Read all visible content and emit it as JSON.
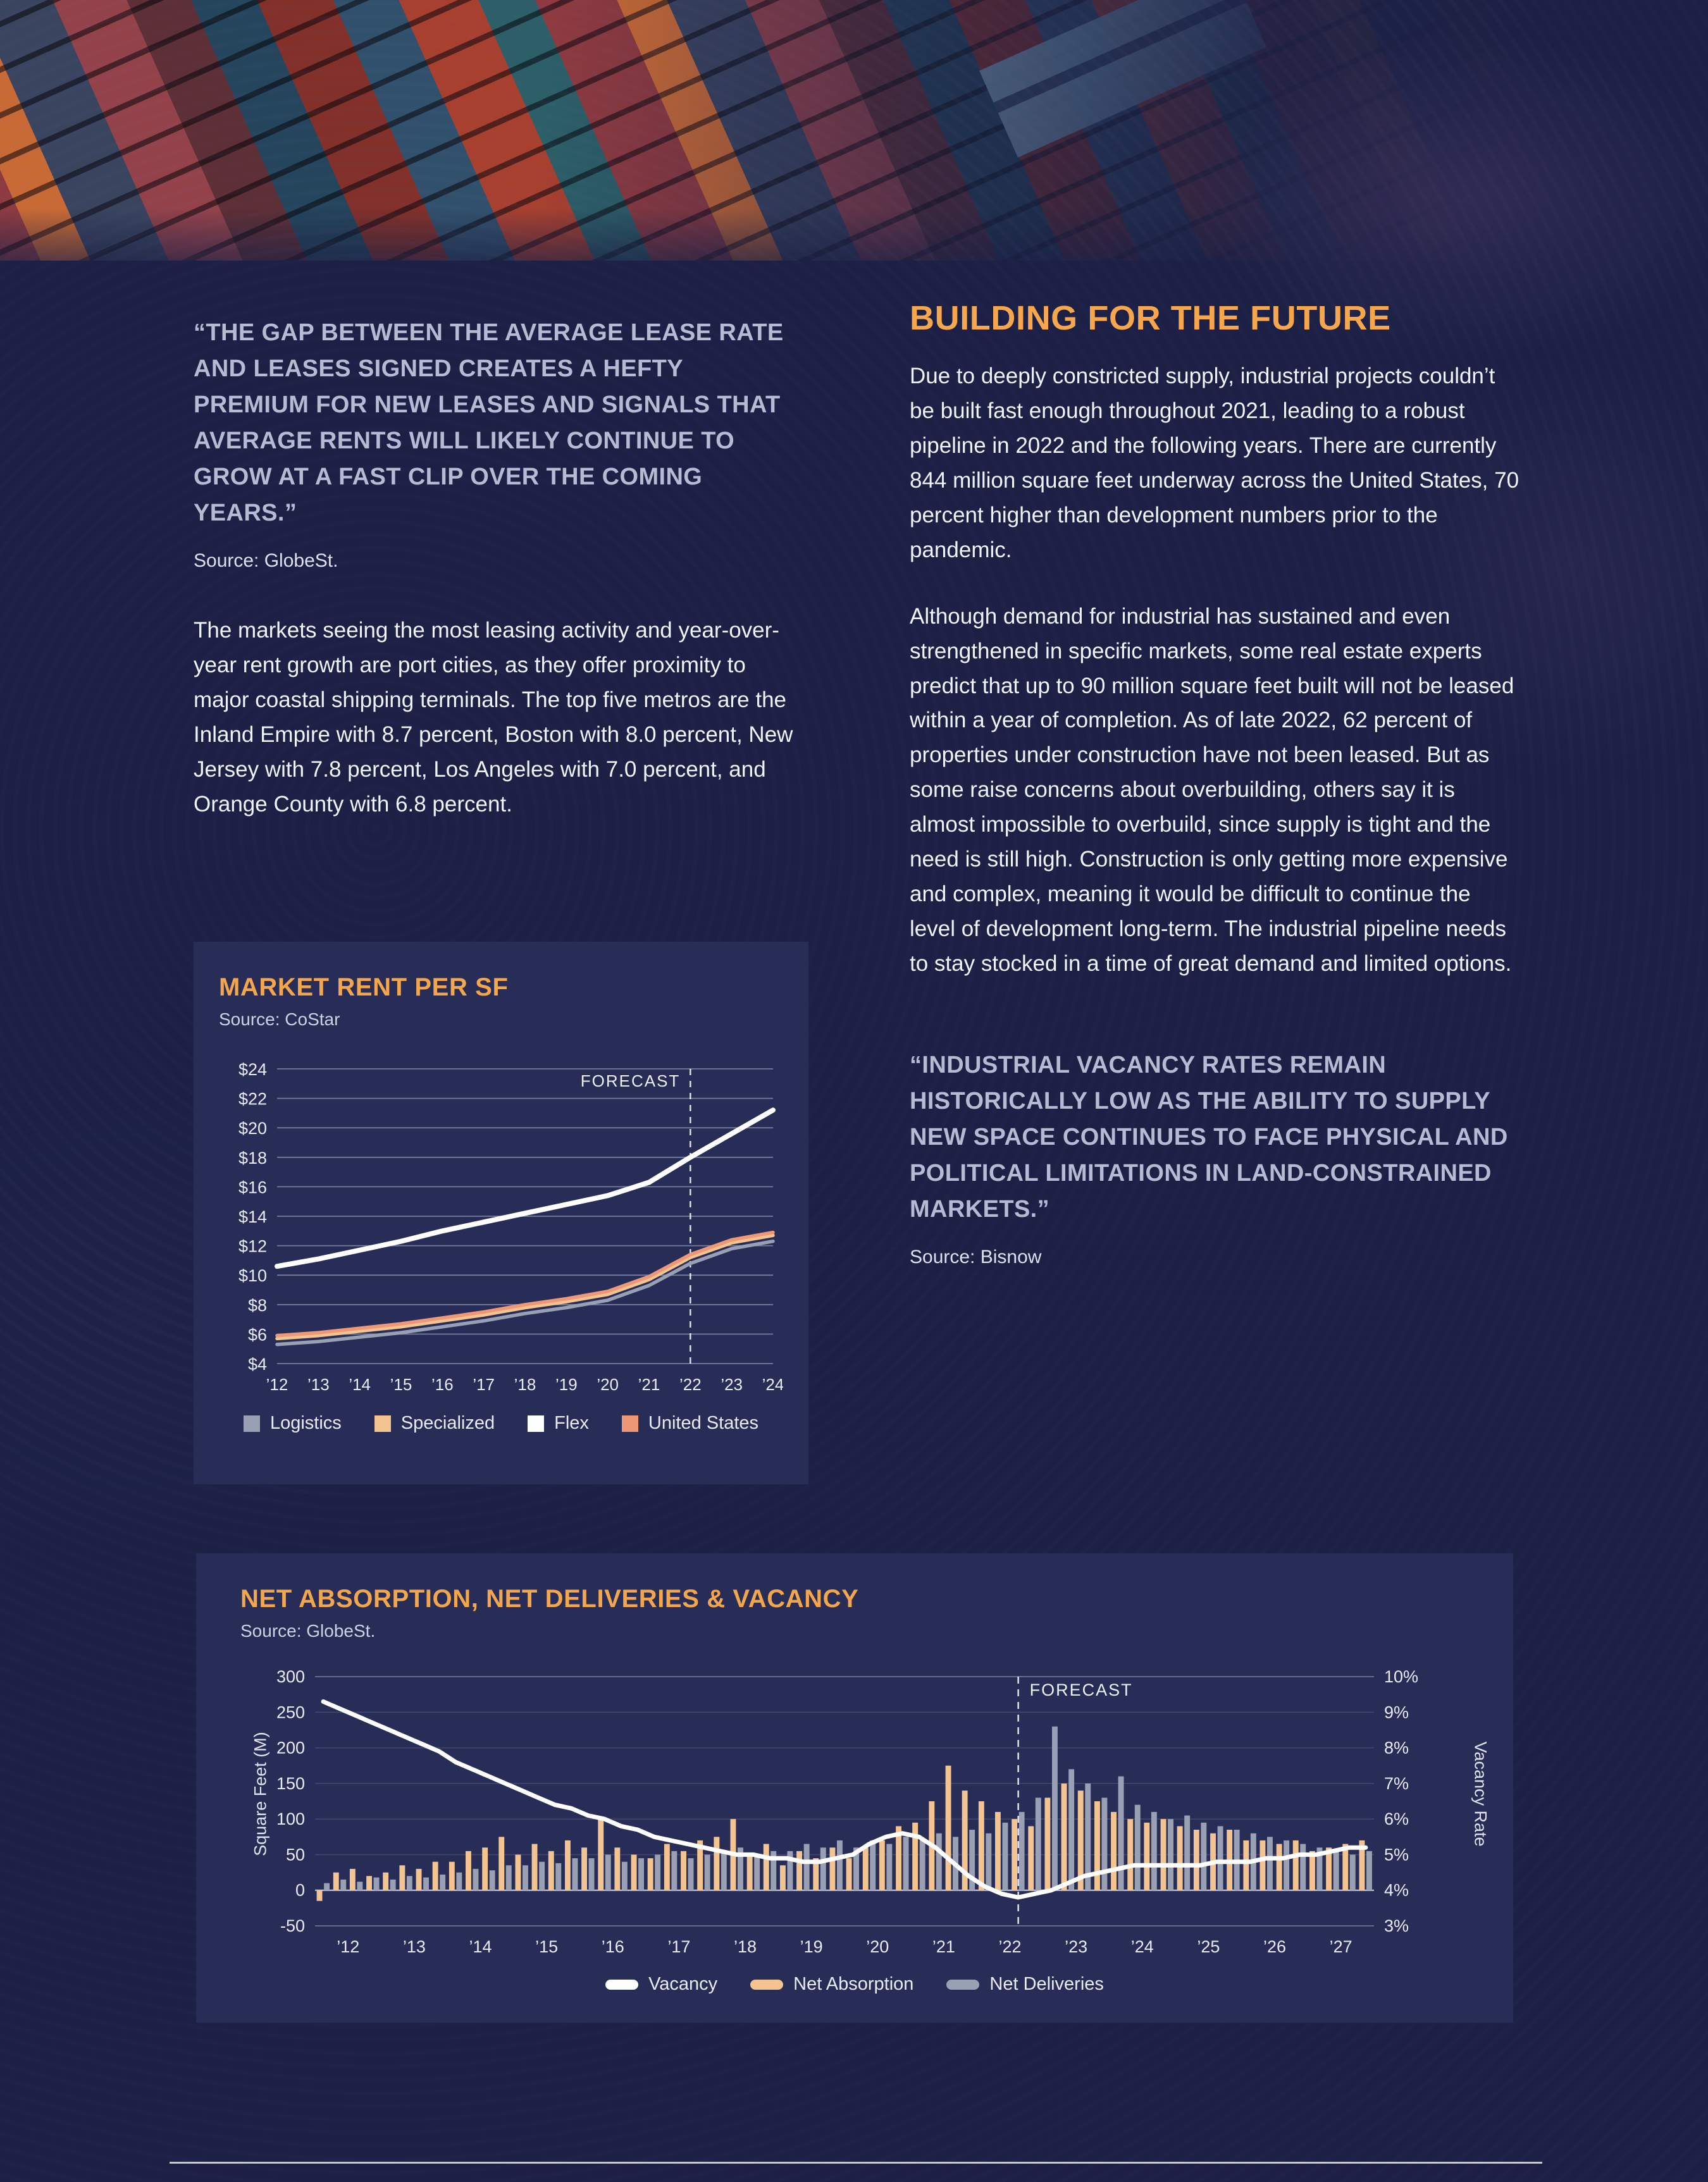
{
  "left_column": {
    "quote": "“THE GAP BETWEEN THE AVERAGE LEASE RATE AND LEASES SIGNED CREATES A HEFTY PREMIUM FOR NEW LEASES AND SIGNALS THAT AVERAGE RENTS WILL LIKELY CONTINUE TO GROW AT A FAST CLIP OVER THE COMING YEARS.”",
    "quote_source": "Source: GlobeSt.",
    "paragraph": "The markets seeing the most leasing activity and year-over-year rent growth are port cities, as they offer proximity to major coastal shipping terminals. The top five metros are the Inland Empire with 8.7 percent, Boston with 8.0 percent, New Jersey with 7.8 percent, Los Angeles with 7.0 percent, and Orange County with 6.8 percent."
  },
  "right_column": {
    "heading": "BUILDING FOR THE FUTURE",
    "paragraph_1": "Due to deeply constricted supply, industrial projects couldn’t be built fast enough throughout 2021, leading to a robust pipeline in 2022 and the following years. There are currently 844 million square feet underway across the United States, 70 percent higher than development numbers prior to the pandemic.",
    "paragraph_2": "Although demand for industrial has sustained and even strengthened in specific markets, some real estate experts predict that up to 90 million square feet built will not be leased within a year of completion. As of late 2022, 62 percent of properties under construction have not been leased. But as some raise concerns about overbuilding, others say it is almost impossible to overbuild, since supply is tight and the need is still high. Construction is only getting more expensive and complex, meaning it would be difficult to continue the level of development long-term. The industrial pipeline needs to stay stocked in a time of great demand and limited options.",
    "quote": "“INDUSTRIAL VACANCY RATES REMAIN HISTORICALLY LOW AS THE ABILITY TO SUPPLY NEW SPACE CONTINUES TO FACE PHYSICAL AND POLITICAL LIMITATIONS IN LAND-CONSTRAINED MARKETS.”",
    "quote_source": "Source: Bisnow"
  },
  "colors": {
    "background": "#1b2044",
    "card": "#272d56",
    "accent_orange": "#f3a64c",
    "quote_gray": "#b4bbd2",
    "body_text": "#f1f3fa",
    "tan": "#f3c390",
    "gray": "#9aa0b4",
    "salmon": "#ef9878",
    "white": "#ffffff"
  },
  "chart_data": [
    {
      "type": "line",
      "title": "MARKET RENT PER SF",
      "source": "Source: CoStar",
      "x": [
        "’12",
        "’13",
        "’14",
        "’15",
        "’16",
        "’17",
        "’18",
        "’19",
        "’20",
        "’21",
        "’22",
        "’23",
        "’24"
      ],
      "ylim": [
        4,
        24
      ],
      "ytick_step": 2,
      "ytick_prefix": "$",
      "grid": true,
      "forecast_label": "FORECAST",
      "forecast_x": "’22",
      "legend_position": "bottom",
      "series": [
        {
          "name": "Logistics",
          "color": "#9aa0b4",
          "width": 5.5,
          "values": [
            5.3,
            5.5,
            5.8,
            6.1,
            6.5,
            6.9,
            7.4,
            7.8,
            8.3,
            9.3,
            10.8,
            11.8,
            12.3
          ]
        },
        {
          "name": "Specialized",
          "color": "#f3c390",
          "width": 5.5,
          "values": [
            5.7,
            5.9,
            6.2,
            6.5,
            6.9,
            7.3,
            7.8,
            8.2,
            8.7,
            9.7,
            11.2,
            12.2,
            12.7
          ]
        },
        {
          "name": "Flex",
          "color": "#ffffff",
          "width": 8,
          "values": [
            10.6,
            11.1,
            11.7,
            12.3,
            13.0,
            13.6,
            14.2,
            14.8,
            15.4,
            16.3,
            18.0,
            19.6,
            21.2
          ]
        },
        {
          "name": "United States",
          "color": "#ef9878",
          "width": 5.5,
          "values": [
            5.9,
            6.1,
            6.4,
            6.7,
            7.1,
            7.5,
            8.0,
            8.4,
            8.9,
            9.9,
            11.4,
            12.4,
            12.9
          ]
        }
      ]
    },
    {
      "type": "combo",
      "title": "NET ABSORPTION, NET DELIVERIES & VACANCY",
      "source": "Source: GlobeSt.",
      "ylabel_left": "Square Feet (M)",
      "ylabel_right": "Vacancy Rate",
      "ylim_left": [
        -50,
        300
      ],
      "yticks_left": [
        -50,
        0,
        50,
        100,
        150,
        200,
        250,
        300
      ],
      "ylim_right": [
        3,
        10
      ],
      "yticks_right": [
        3,
        4,
        5,
        6,
        7,
        8,
        9,
        10
      ],
      "years": [
        "’12",
        "’13",
        "’14",
        "’15",
        "’16",
        "’17",
        "’18",
        "’19",
        "’20",
        "’21",
        "’22",
        "’23",
        "’24",
        "’25",
        "’26",
        "’27"
      ],
      "quarters_per_year": 4,
      "forecast_label": "FORECAST",
      "forecast_index": 42.5,
      "legend_position": "bottom",
      "series": [
        {
          "name": "Vacancy",
          "type": "line",
          "axis": "right",
          "color": "#ffffff",
          "values": [
            9.3,
            9.1,
            8.9,
            8.7,
            8.5,
            8.3,
            8.1,
            7.9,
            7.6,
            7.4,
            7.2,
            7.0,
            6.8,
            6.6,
            6.4,
            6.3,
            6.1,
            6.0,
            5.8,
            5.7,
            5.5,
            5.4,
            5.3,
            5.2,
            5.1,
            5.0,
            5.0,
            4.9,
            4.9,
            4.8,
            4.8,
            4.9,
            5.0,
            5.3,
            5.5,
            5.6,
            5.5,
            5.2,
            4.8,
            4.4,
            4.1,
            3.9,
            3.8,
            3.9,
            4.0,
            4.2,
            4.4,
            4.5,
            4.6,
            4.7,
            4.7,
            4.7,
            4.7,
            4.7,
            4.8,
            4.8,
            4.8,
            4.9,
            4.9,
            5.0,
            5.0,
            5.1,
            5.2,
            5.2
          ]
        },
        {
          "name": "Net Absorption",
          "type": "bar",
          "axis": "left",
          "color": "#f3c390",
          "values": [
            -15,
            25,
            30,
            20,
            25,
            35,
            30,
            40,
            40,
            55,
            60,
            75,
            50,
            65,
            55,
            70,
            60,
            100,
            60,
            50,
            45,
            65,
            55,
            70,
            75,
            100,
            50,
            65,
            35,
            55,
            45,
            60,
            45,
            60,
            70,
            90,
            95,
            125,
            175,
            140,
            125,
            110,
            100,
            90,
            130,
            150,
            140,
            125,
            110,
            100,
            95,
            100,
            90,
            85,
            80,
            85,
            70,
            70,
            65,
            70,
            55,
            60,
            65,
            70
          ]
        },
        {
          "name": "Net Deliveries",
          "type": "bar",
          "axis": "left",
          "color": "#9aa0b4",
          "values": [
            10,
            15,
            12,
            18,
            15,
            20,
            18,
            22,
            25,
            30,
            28,
            35,
            35,
            40,
            38,
            45,
            45,
            50,
            40,
            45,
            50,
            55,
            45,
            50,
            55,
            60,
            50,
            55,
            55,
            65,
            60,
            70,
            60,
            70,
            65,
            75,
            70,
            80,
            75,
            85,
            80,
            95,
            110,
            130,
            230,
            170,
            150,
            130,
            160,
            120,
            110,
            100,
            105,
            95,
            90,
            85,
            80,
            75,
            70,
            65,
            60,
            55,
            50,
            55
          ]
        }
      ]
    }
  ]
}
